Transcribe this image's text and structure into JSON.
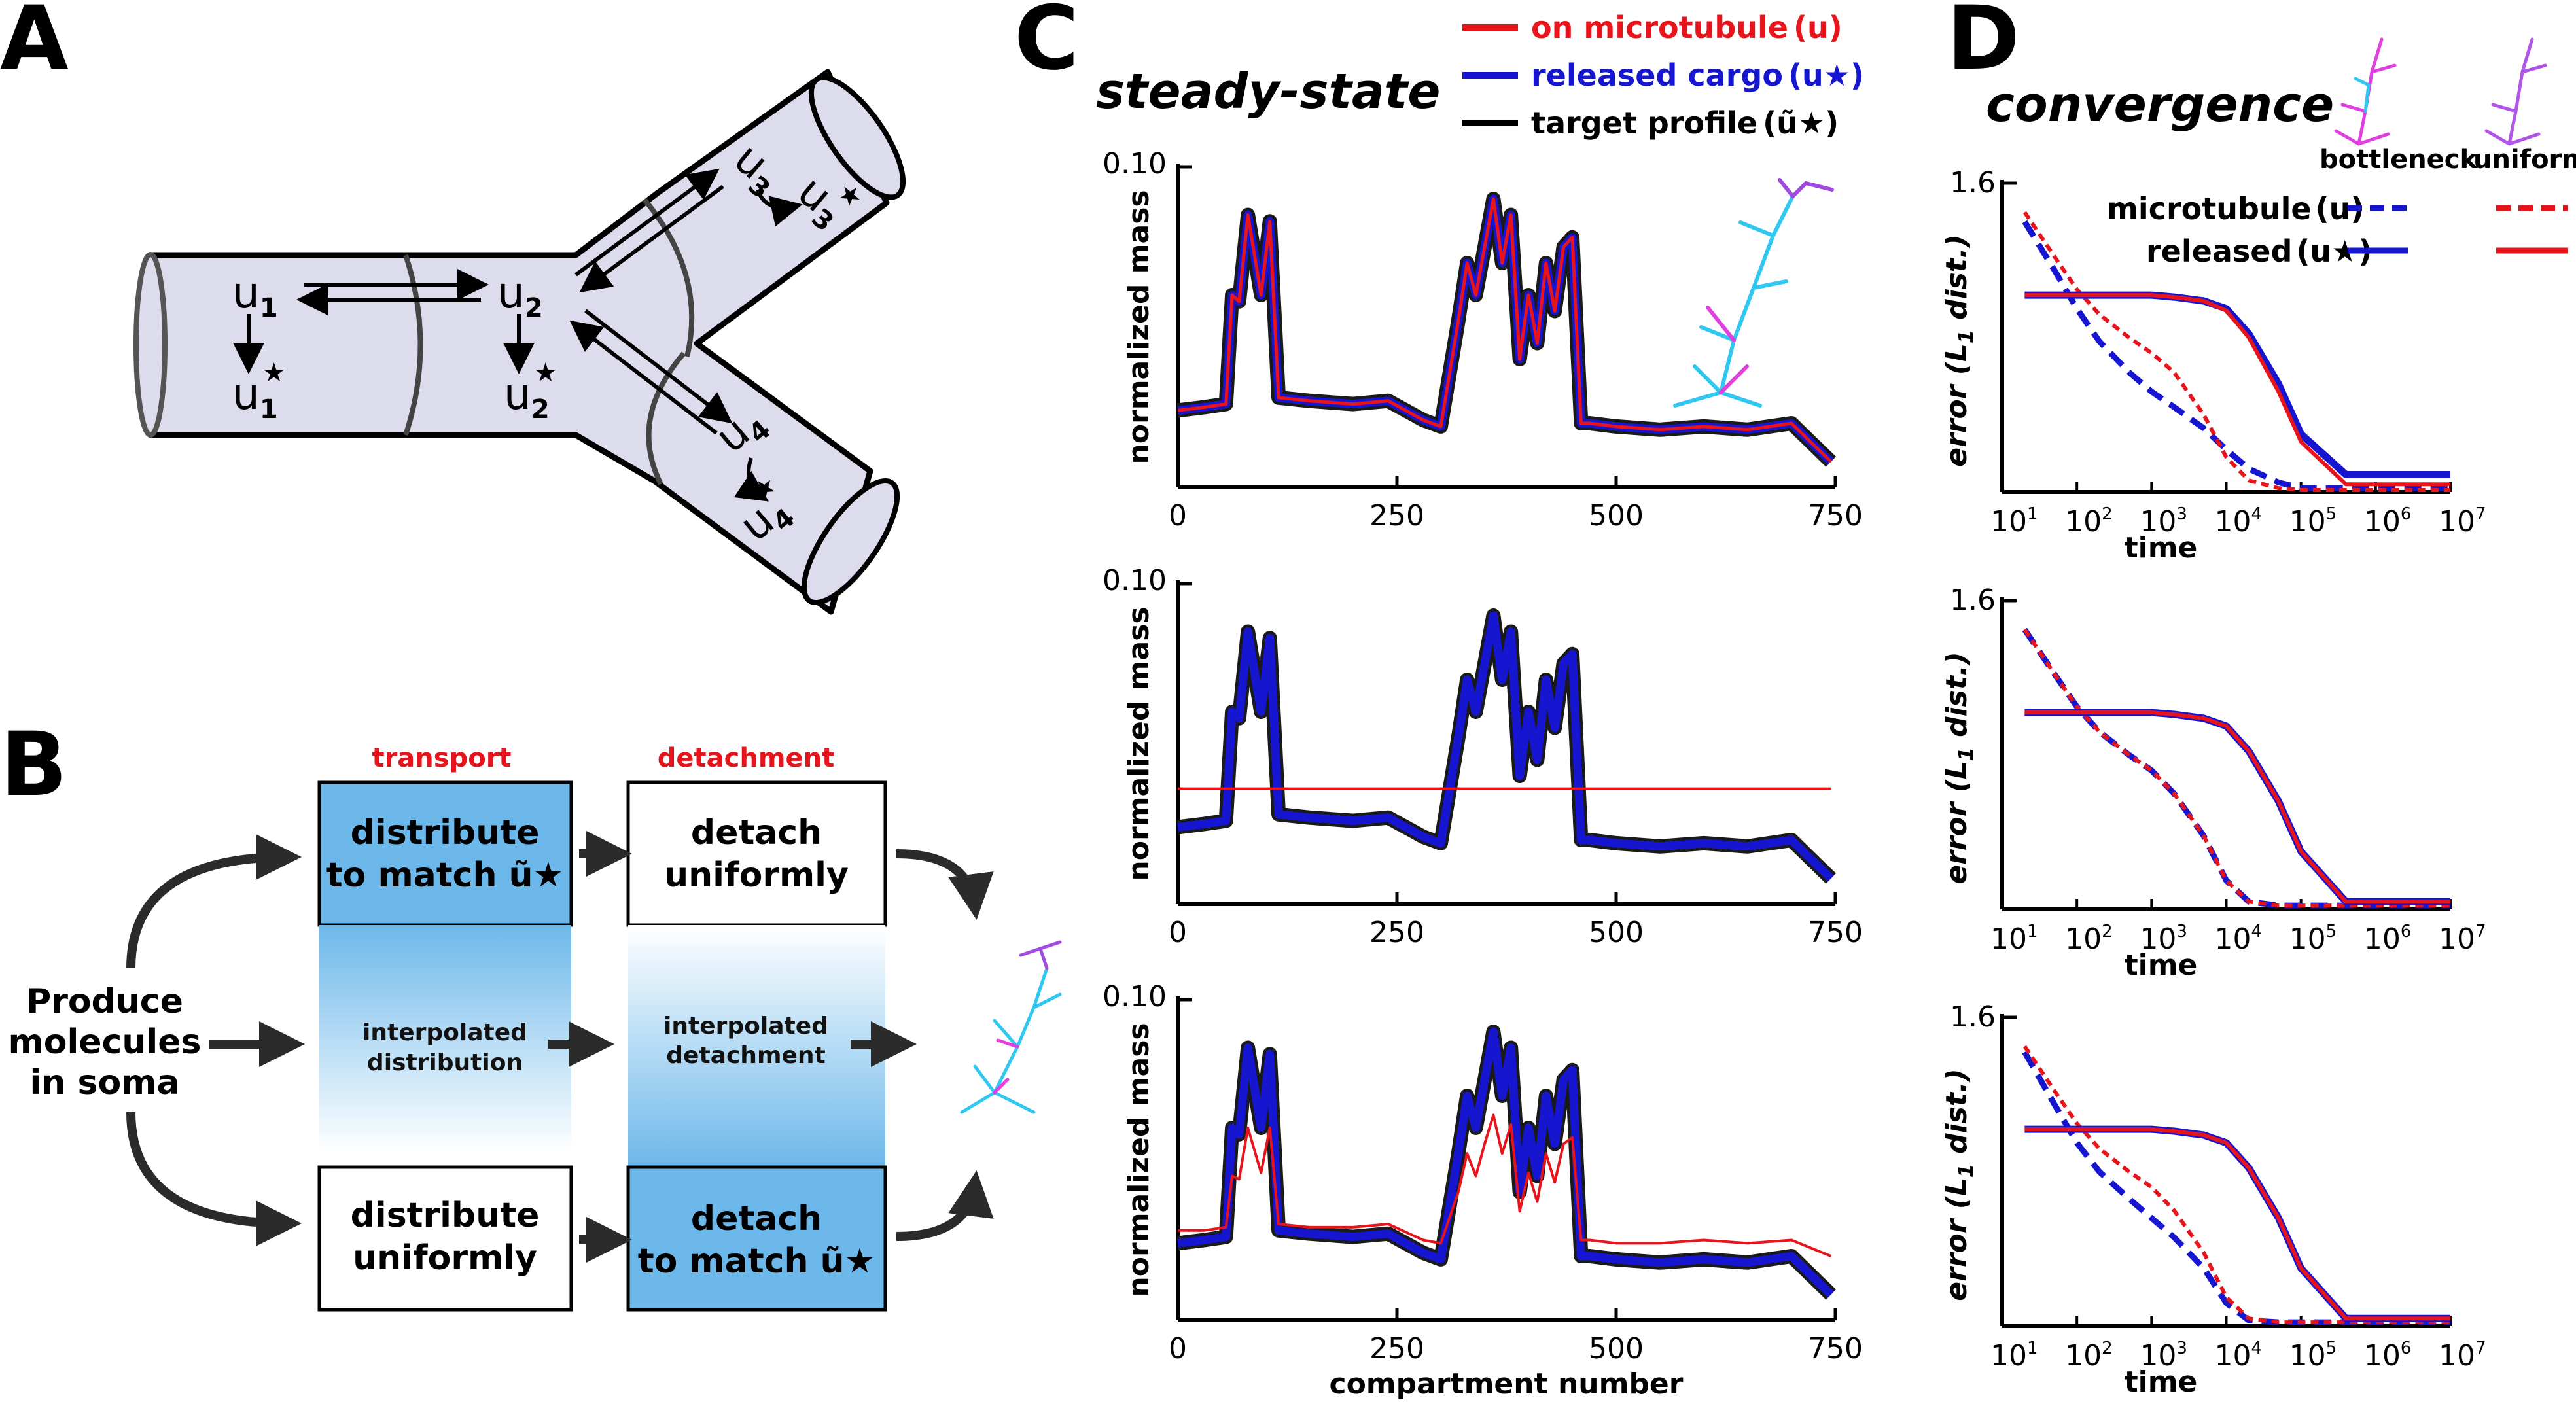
{
  "panels": {
    "A": {
      "label": "A",
      "vars": {
        "u1": "u",
        "u1_sub": "1",
        "u1s": "u",
        "u1s_sub": "1",
        "u1s_sup": "★",
        "u2": "u",
        "u2_sub": "2",
        "u2s": "u",
        "u2s_sub": "2",
        "u2s_sup": "★",
        "u3": "u",
        "u3_sub": "3",
        "u3s": "u",
        "u3s_sub": "3",
        "u3s_sup": "★",
        "u4": "u",
        "u4_sub": "4",
        "u4s": "u",
        "u4s_sub": "4",
        "u4s_sup": "★"
      }
    },
    "B": {
      "label": "B",
      "col_transport": "transport",
      "col_detachment": "detachment",
      "produce_line1": "Produce",
      "produce_line2": "molecules",
      "produce_line3": "in soma",
      "box_tl_1": "distribute",
      "box_tl_2": "to match ũ★",
      "box_tr_1": "detach",
      "box_tr_2": "uniformly",
      "mid_l_1": "interpolated",
      "mid_l_2": "distribution",
      "mid_r_1": "interpolated",
      "mid_r_2": "detachment",
      "box_bl_1": "distribute",
      "box_bl_2": "uniformly",
      "box_br_1": "detach",
      "box_br_2": "to match ũ★",
      "colors": {
        "blue_box": "#6db8ea",
        "arrow": "#2b2b2b"
      }
    },
    "C": {
      "label": "C",
      "title": "steady-state",
      "legend": [
        {
          "text": "on microtubule",
          "sym": "(u)",
          "color": "#e8141b"
        },
        {
          "text": "released cargo",
          "sym": "(u★)",
          "color": "#1616d0"
        },
        {
          "text": "target profile",
          "sym": "(ũ★)",
          "color": "#000000"
        }
      ],
      "ylabel": "normalized mass",
      "ytop_label": "0.10",
      "xticks": [
        "0",
        "250",
        "500",
        "750"
      ],
      "xlabel": "compartment number"
    },
    "D": {
      "label": "D",
      "title": "convergence",
      "legend_cols": [
        "bottleneck",
        "uniform"
      ],
      "legend_rows": [
        {
          "text": "microtubule",
          "sym": "(u)"
        },
        {
          "text": "released",
          "sym": "(u★)"
        }
      ],
      "ylabel_main": "error",
      "ylabel_paren": "(L",
      "ylabel_sub": "1",
      "ylabel_tail": " dist.)",
      "ytop_label": "1.6",
      "xticks_base": "10",
      "xticks_exp": [
        "1",
        "2",
        "3",
        "4",
        "5",
        "6",
        "7"
      ],
      "xlabel": "time"
    }
  },
  "chart_data": [
    {
      "type": "line",
      "panel": "C-top",
      "ylabel": "normalized mass",
      "xlabel": "",
      "xlim": [
        0,
        750
      ],
      "ylim": [
        0,
        0.1
      ],
      "x": [
        0,
        30,
        55,
        62,
        70,
        80,
        95,
        105,
        115,
        150,
        200,
        240,
        280,
        300,
        320,
        330,
        340,
        350,
        360,
        370,
        380,
        390,
        400,
        410,
        420,
        430,
        440,
        450,
        460,
        470,
        500,
        550,
        600,
        650,
        700,
        745
      ],
      "series": [
        {
          "name": "on microtubule (u)",
          "values": [
            0.024,
            0.025,
            0.026,
            0.06,
            0.058,
            0.085,
            0.06,
            0.083,
            0.028,
            0.027,
            0.026,
            0.027,
            0.021,
            0.019,
            0.052,
            0.07,
            0.06,
            0.075,
            0.09,
            0.07,
            0.085,
            0.04,
            0.06,
            0.045,
            0.07,
            0.055,
            0.075,
            0.078,
            0.02,
            0.02,
            0.019,
            0.018,
            0.019,
            0.018,
            0.02,
            0.008
          ]
        },
        {
          "name": "released cargo (u★)",
          "values": [
            0.024,
            0.025,
            0.026,
            0.06,
            0.058,
            0.085,
            0.06,
            0.083,
            0.028,
            0.027,
            0.026,
            0.027,
            0.021,
            0.019,
            0.052,
            0.07,
            0.06,
            0.075,
            0.09,
            0.07,
            0.085,
            0.04,
            0.06,
            0.045,
            0.07,
            0.055,
            0.075,
            0.078,
            0.02,
            0.02,
            0.019,
            0.018,
            0.019,
            0.018,
            0.02,
            0.008
          ]
        },
        {
          "name": "target profile (ũ★)",
          "values": [
            0.024,
            0.025,
            0.026,
            0.06,
            0.058,
            0.085,
            0.06,
            0.083,
            0.028,
            0.027,
            0.026,
            0.027,
            0.021,
            0.019,
            0.052,
            0.07,
            0.06,
            0.075,
            0.09,
            0.07,
            0.085,
            0.04,
            0.06,
            0.045,
            0.07,
            0.055,
            0.075,
            0.078,
            0.02,
            0.02,
            0.019,
            0.018,
            0.019,
            0.018,
            0.02,
            0.008
          ]
        }
      ]
    },
    {
      "type": "line",
      "panel": "C-middle",
      "ylabel": "normalized mass",
      "xlabel": "",
      "xlim": [
        0,
        750
      ],
      "ylim": [
        0,
        0.1
      ],
      "x": [
        0,
        30,
        55,
        62,
        70,
        80,
        95,
        105,
        115,
        150,
        200,
        240,
        280,
        300,
        320,
        330,
        340,
        350,
        360,
        370,
        380,
        390,
        400,
        410,
        420,
        430,
        440,
        450,
        460,
        470,
        500,
        550,
        600,
        650,
        700,
        745
      ],
      "series": [
        {
          "name": "on microtubule (u)",
          "values": [
            0.036,
            0.036,
            0.036,
            0.036,
            0.036,
            0.036,
            0.036,
            0.036,
            0.036,
            0.036,
            0.036,
            0.036,
            0.036,
            0.036,
            0.036,
            0.036,
            0.036,
            0.036,
            0.036,
            0.036,
            0.036,
            0.036,
            0.036,
            0.036,
            0.036,
            0.036,
            0.036,
            0.036,
            0.036,
            0.036,
            0.036,
            0.036,
            0.036,
            0.036,
            0.036,
            0.036
          ]
        },
        {
          "name": "released cargo (u★)",
          "values": [
            0.024,
            0.025,
            0.026,
            0.06,
            0.058,
            0.085,
            0.06,
            0.083,
            0.028,
            0.027,
            0.026,
            0.027,
            0.021,
            0.019,
            0.052,
            0.07,
            0.06,
            0.075,
            0.09,
            0.07,
            0.085,
            0.04,
            0.06,
            0.045,
            0.07,
            0.055,
            0.075,
            0.078,
            0.02,
            0.02,
            0.019,
            0.018,
            0.019,
            0.018,
            0.02,
            0.008
          ]
        },
        {
          "name": "target profile (ũ★)",
          "values": [
            0.024,
            0.025,
            0.026,
            0.06,
            0.058,
            0.085,
            0.06,
            0.083,
            0.028,
            0.027,
            0.026,
            0.027,
            0.021,
            0.019,
            0.052,
            0.07,
            0.06,
            0.075,
            0.09,
            0.07,
            0.085,
            0.04,
            0.06,
            0.045,
            0.07,
            0.055,
            0.075,
            0.078,
            0.02,
            0.02,
            0.019,
            0.018,
            0.019,
            0.018,
            0.02,
            0.008
          ]
        }
      ]
    },
    {
      "type": "line",
      "panel": "C-bottom",
      "ylabel": "normalized mass",
      "xlabel": "compartment number",
      "xlim": [
        0,
        750
      ],
      "ylim": [
        0,
        0.1
      ],
      "x": [
        0,
        30,
        55,
        62,
        70,
        80,
        95,
        105,
        115,
        150,
        200,
        240,
        280,
        300,
        320,
        330,
        340,
        350,
        360,
        370,
        380,
        390,
        400,
        410,
        420,
        430,
        440,
        450,
        460,
        470,
        500,
        550,
        600,
        650,
        700,
        745
      ],
      "series": [
        {
          "name": "on microtubule (u)",
          "values": [
            0.028,
            0.028,
            0.029,
            0.045,
            0.044,
            0.06,
            0.046,
            0.06,
            0.03,
            0.029,
            0.029,
            0.03,
            0.025,
            0.024,
            0.04,
            0.052,
            0.045,
            0.055,
            0.064,
            0.052,
            0.061,
            0.034,
            0.046,
            0.037,
            0.052,
            0.043,
            0.055,
            0.057,
            0.025,
            0.025,
            0.024,
            0.024,
            0.025,
            0.024,
            0.025,
            0.02
          ]
        },
        {
          "name": "released cargo (u★)",
          "values": [
            0.024,
            0.025,
            0.026,
            0.06,
            0.058,
            0.085,
            0.06,
            0.083,
            0.028,
            0.027,
            0.026,
            0.027,
            0.021,
            0.019,
            0.052,
            0.07,
            0.06,
            0.075,
            0.09,
            0.07,
            0.085,
            0.04,
            0.06,
            0.045,
            0.07,
            0.055,
            0.075,
            0.078,
            0.02,
            0.02,
            0.019,
            0.018,
            0.019,
            0.018,
            0.02,
            0.008
          ]
        },
        {
          "name": "target profile (ũ★)",
          "values": [
            0.024,
            0.025,
            0.026,
            0.06,
            0.058,
            0.085,
            0.06,
            0.083,
            0.028,
            0.027,
            0.026,
            0.027,
            0.021,
            0.019,
            0.052,
            0.07,
            0.06,
            0.075,
            0.09,
            0.07,
            0.085,
            0.04,
            0.06,
            0.045,
            0.07,
            0.055,
            0.075,
            0.078,
            0.02,
            0.02,
            0.019,
            0.018,
            0.019,
            0.018,
            0.02,
            0.008
          ]
        }
      ]
    },
    {
      "type": "line",
      "panel": "D-top",
      "xscale": "log",
      "xlim": [
        10,
        10000000
      ],
      "ylim": [
        0,
        1.6
      ],
      "x": [
        20,
        50,
        100,
        200,
        500,
        1000,
        2000,
        5000,
        10000,
        20000,
        50000,
        100000,
        400000,
        1000000,
        10000000
      ],
      "series": [
        {
          "name": "microtubule (u) bottleneck",
          "values": [
            1.4,
            1.15,
            0.95,
            0.78,
            0.62,
            0.52,
            0.44,
            0.33,
            0.22,
            0.12,
            0.05,
            0.02,
            0.02,
            0.02,
            0.02
          ]
        },
        {
          "name": "microtubule (u) uniform",
          "values": [
            1.45,
            1.22,
            1.05,
            0.92,
            0.8,
            0.72,
            0.62,
            0.4,
            0.18,
            0.06,
            0.02,
            0.01,
            0.01,
            0.01,
            0.01
          ]
        },
        {
          "name": "released (u★) bottleneck",
          "values": [
            1.02,
            1.02,
            1.02,
            1.02,
            1.02,
            1.02,
            1.01,
            0.99,
            0.95,
            0.82,
            0.56,
            0.3,
            0.09,
            0.09,
            0.09
          ]
        },
        {
          "name": "released (u★) uniform",
          "values": [
            1.02,
            1.02,
            1.02,
            1.02,
            1.02,
            1.02,
            1.01,
            0.99,
            0.94,
            0.8,
            0.52,
            0.26,
            0.04,
            0.04,
            0.04
          ]
        }
      ]
    },
    {
      "type": "line",
      "panel": "D-middle",
      "xscale": "log",
      "xlim": [
        10,
        10000000
      ],
      "ylim": [
        0,
        1.6
      ],
      "x": [
        20,
        50,
        100,
        200,
        500,
        1000,
        2000,
        5000,
        10000,
        20000,
        50000,
        100000,
        400000,
        1000000,
        10000000
      ],
      "series": [
        {
          "name": "microtubule (u) bottleneck",
          "values": [
            1.45,
            1.22,
            1.05,
            0.92,
            0.8,
            0.72,
            0.6,
            0.38,
            0.15,
            0.04,
            0.02,
            0.02,
            0.02,
            0.02,
            0.02
          ]
        },
        {
          "name": "microtubule (u) uniform",
          "values": [
            1.45,
            1.22,
            1.05,
            0.92,
            0.8,
            0.72,
            0.6,
            0.38,
            0.15,
            0.04,
            0.02,
            0.02,
            0.02,
            0.02,
            0.02
          ]
        },
        {
          "name": "released (u★) bottleneck",
          "values": [
            1.02,
            1.02,
            1.02,
            1.02,
            1.02,
            1.02,
            1.01,
            0.99,
            0.95,
            0.82,
            0.56,
            0.3,
            0.04,
            0.04,
            0.04
          ]
        },
        {
          "name": "released (u★) uniform",
          "values": [
            1.02,
            1.02,
            1.02,
            1.02,
            1.02,
            1.02,
            1.01,
            0.99,
            0.95,
            0.82,
            0.56,
            0.3,
            0.04,
            0.04,
            0.04
          ]
        }
      ]
    },
    {
      "type": "line",
      "panel": "D-bottom",
      "xscale": "log",
      "xlim": [
        10,
        10000000
      ],
      "ylim": [
        0,
        1.6
      ],
      "x": [
        20,
        50,
        100,
        200,
        500,
        1000,
        2000,
        5000,
        10000,
        20000,
        50000,
        100000,
        400000,
        1000000,
        10000000
      ],
      "series": [
        {
          "name": "microtubule (u) bottleneck",
          "values": [
            1.42,
            1.15,
            0.95,
            0.8,
            0.66,
            0.56,
            0.46,
            0.3,
            0.12,
            0.03,
            0.02,
            0.02,
            0.02,
            0.02,
            0.02
          ]
        },
        {
          "name": "microtubule (u) uniform",
          "values": [
            1.45,
            1.22,
            1.05,
            0.92,
            0.8,
            0.72,
            0.6,
            0.38,
            0.15,
            0.04,
            0.02,
            0.02,
            0.02,
            0.02,
            0.02
          ]
        },
        {
          "name": "released (u★) bottleneck",
          "values": [
            1.02,
            1.02,
            1.02,
            1.02,
            1.02,
            1.02,
            1.01,
            0.99,
            0.95,
            0.82,
            0.56,
            0.3,
            0.04,
            0.04,
            0.04
          ]
        },
        {
          "name": "released (u★) uniform",
          "values": [
            1.02,
            1.02,
            1.02,
            1.02,
            1.02,
            1.02,
            1.01,
            0.99,
            0.95,
            0.82,
            0.56,
            0.3,
            0.04,
            0.04,
            0.04
          ]
        }
      ]
    }
  ]
}
